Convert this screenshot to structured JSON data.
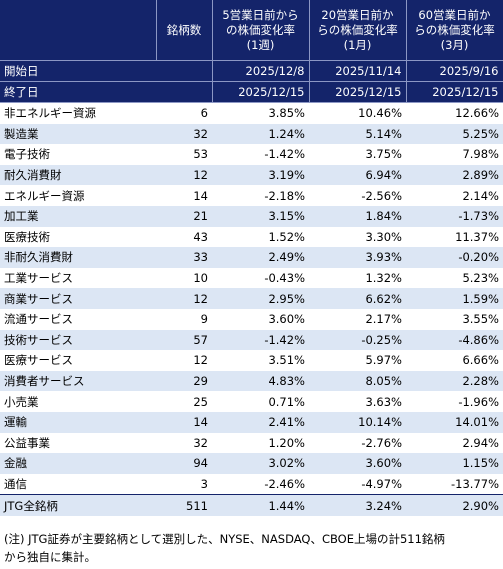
{
  "header": {
    "col_count": "銘柄数",
    "col_5d": [
      "5営業日前から",
      "の株価変化率",
      "(1週)"
    ],
    "col_20d": [
      "20営業日前か",
      "らの株価変化率",
      "(1月)"
    ],
    "col_60d": [
      "60営業日前か",
      "らの株価変化率",
      "(3月)"
    ]
  },
  "dates": {
    "start_label": "開始日",
    "end_label": "終了日",
    "start": [
      "2025/12/8",
      "2025/11/14",
      "2025/9/16"
    ],
    "end": [
      "2025/12/15",
      "2025/12/15",
      "2025/12/15"
    ]
  },
  "rows": [
    {
      "name": "非エネルギー資源",
      "count": "6",
      "w1": "3.85%",
      "m1": "10.46%",
      "m3": "12.66%"
    },
    {
      "name": "製造業",
      "count": "32",
      "w1": "1.24%",
      "m1": "5.14%",
      "m3": "5.25%"
    },
    {
      "name": "電子技術",
      "count": "53",
      "w1": "-1.42%",
      "m1": "3.75%",
      "m3": "7.98%"
    },
    {
      "name": "耐久消費財",
      "count": "12",
      "w1": "3.19%",
      "m1": "6.94%",
      "m3": "2.89%"
    },
    {
      "name": "エネルギー資源",
      "count": "14",
      "w1": "-2.18%",
      "m1": "-2.56%",
      "m3": "2.14%"
    },
    {
      "name": "加工業",
      "count": "21",
      "w1": "3.15%",
      "m1": "1.84%",
      "m3": "-1.73%"
    },
    {
      "name": "医療技術",
      "count": "43",
      "w1": "1.52%",
      "m1": "3.30%",
      "m3": "11.37%"
    },
    {
      "name": "非耐久消費財",
      "count": "33",
      "w1": "2.49%",
      "m1": "3.93%",
      "m3": "-0.20%"
    },
    {
      "name": "工業サービス",
      "count": "10",
      "w1": "-0.43%",
      "m1": "1.32%",
      "m3": "5.23%"
    },
    {
      "name": "商業サービス",
      "count": "12",
      "w1": "2.95%",
      "m1": "6.62%",
      "m3": "1.59%"
    },
    {
      "name": "流通サービス",
      "count": "9",
      "w1": "3.60%",
      "m1": "2.17%",
      "m3": "3.55%"
    },
    {
      "name": "技術サービス",
      "count": "57",
      "w1": "-1.42%",
      "m1": "-0.25%",
      "m3": "-4.86%"
    },
    {
      "name": "医療サービス",
      "count": "12",
      "w1": "3.51%",
      "m1": "5.97%",
      "m3": "6.66%"
    },
    {
      "name": "消費者サービス",
      "count": "29",
      "w1": "4.83%",
      "m1": "8.05%",
      "m3": "2.28%"
    },
    {
      "name": "小売業",
      "count": "25",
      "w1": "0.71%",
      "m1": "3.63%",
      "m3": "-1.96%"
    },
    {
      "name": "運輸",
      "count": "14",
      "w1": "2.41%",
      "m1": "10.14%",
      "m3": "14.01%"
    },
    {
      "name": "公益事業",
      "count": "32",
      "w1": "1.20%",
      "m1": "-2.76%",
      "m3": "2.94%"
    },
    {
      "name": "金融",
      "count": "94",
      "w1": "3.02%",
      "m1": "3.60%",
      "m3": "1.15%"
    },
    {
      "name": "通信",
      "count": "3",
      "w1": "-2.46%",
      "m1": "-4.97%",
      "m3": "-13.77%"
    },
    {
      "name": "JTG全銘柄",
      "count": "511",
      "w1": "1.44%",
      "m1": "3.24%",
      "m3": "2.90%"
    }
  ],
  "note": [
    "(注) JTG証券が主要銘柄として選別した、NYSE、NASDAQ、CBOE上場の計511銘柄",
    "から独自に集計。"
  ]
}
